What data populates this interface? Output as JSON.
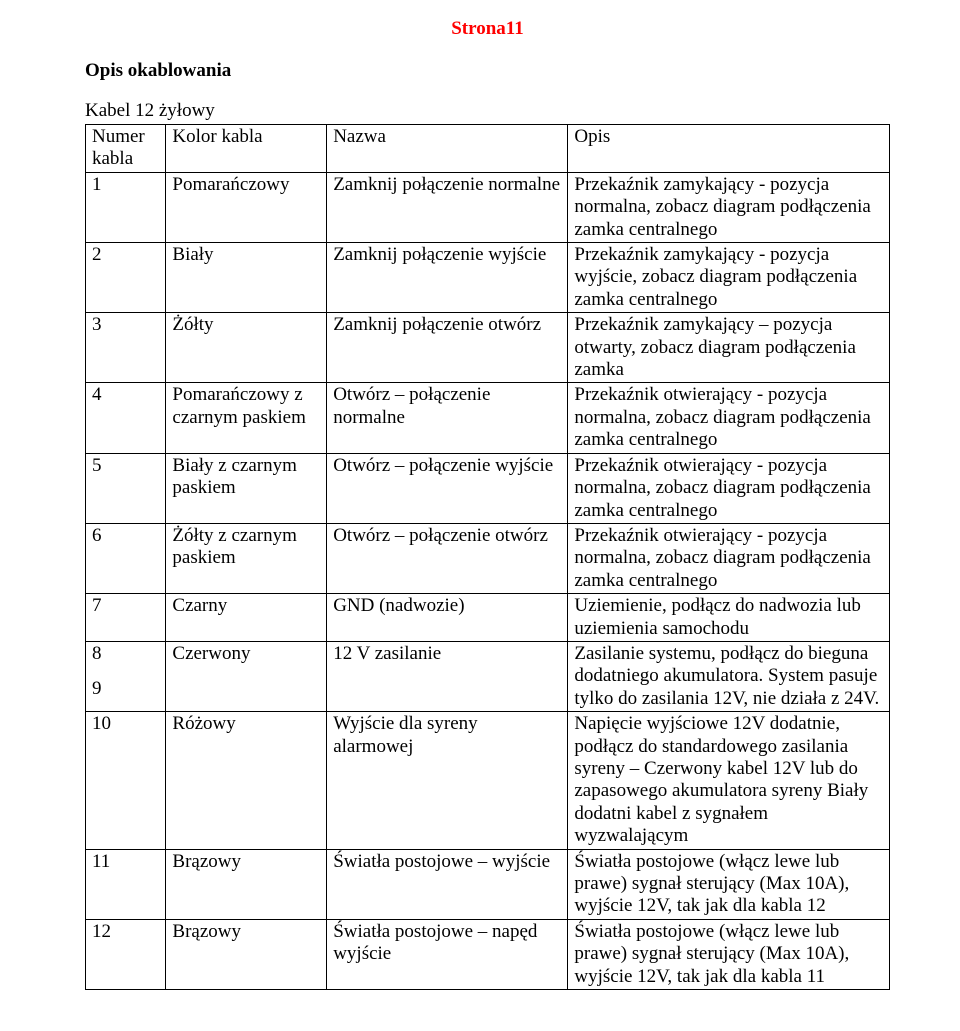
{
  "page_number": "Strona11",
  "section_title": "Opis okablowania",
  "subtitle": "Kabel 12 żyłowy",
  "colors": {
    "page_number_color": "#ff0000",
    "text_color": "#000000",
    "background": "#ffffff",
    "border_color": "#000000"
  },
  "table": {
    "column_widths_pct": [
      10,
      20,
      30,
      40
    ],
    "headers": [
      "Numer kabla",
      "Kolor kabla",
      "Nazwa",
      "Opis"
    ],
    "rows": [
      {
        "num": "1",
        "color": "Pomarańczowy",
        "name": "Zamknij połączenie normalne",
        "desc": "Przekaźnik zamykający - pozycja normalna, zobacz diagram podłączenia zamka centralnego"
      },
      {
        "num": "2",
        "color": "Biały",
        "name": "Zamknij połączenie wyjście",
        "desc": "Przekaźnik zamykający - pozycja wyjście, zobacz diagram podłączenia zamka centralnego"
      },
      {
        "num": "3",
        "color": "Żółty",
        "name": "Zamknij połączenie otwórz",
        "desc": "Przekaźnik zamykający – pozycja otwarty, zobacz diagram podłączenia zamka"
      },
      {
        "num": "4",
        "color": "Pomarańczowy z czarnym paskiem",
        "name": "Otwórz – połączenie normalne",
        "desc": "Przekaźnik otwierający - pozycja normalna, zobacz diagram podłączenia zamka centralnego"
      },
      {
        "num": "5",
        "color": "Biały z czarnym paskiem",
        "name": "Otwórz – połączenie wyjście",
        "desc": "Przekaźnik otwierający - pozycja normalna, zobacz diagram podłączenia zamka centralnego"
      },
      {
        "num": "6",
        "color": "Żółty z czarnym paskiem",
        "name": "Otwórz – połączenie otwórz",
        "desc": "Przekaźnik otwierający - pozycja normalna, zobacz diagram podłączenia zamka centralnego"
      },
      {
        "num": "7",
        "color": "Czarny",
        "name": "GND (nadwozie)",
        "desc": "Uziemienie, podłącz do nadwozia lub uziemienia samochodu"
      },
      {
        "num_a": "8",
        "num_b": "9",
        "color": "Czerwony",
        "name": "12 V zasilanie",
        "desc": "Zasilanie systemu, podłącz do bieguna dodatniego akumulatora. System pasuje tylko do zasilania 12V, nie działa z 24V."
      },
      {
        "num": "10",
        "color": "Różowy",
        "name": "Wyjście dla syreny alarmowej",
        "desc": "Napięcie wyjściowe 12V dodatnie, podłącz do standardowego zasilania syreny – Czerwony kabel 12V lub do zapasowego akumulatora syreny Biały dodatni kabel z sygnałem wyzwalającym"
      },
      {
        "num": "11",
        "color": "Brązowy",
        "name": "Światła postojowe – wyjście",
        "desc": "Światła postojowe (włącz lewe lub prawe) sygnał sterujący (Max 10A), wyjście 12V, tak jak dla kabla 12"
      },
      {
        "num": "12",
        "color": "Brązowy",
        "name": "Światła postojowe – napęd wyjście",
        "desc": "Światła postojowe (włącz lewe lub prawe) sygnał sterujący (Max 10A), wyjście 12V, tak jak dla kabla 11"
      }
    ]
  }
}
